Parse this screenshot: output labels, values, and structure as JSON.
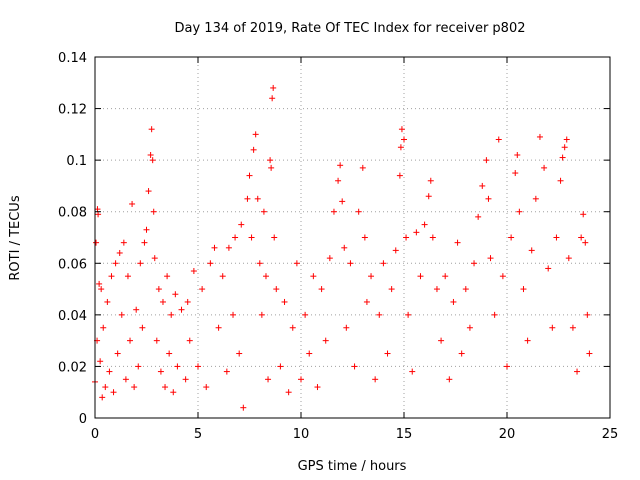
{
  "chart_data": {
    "type": "scatter",
    "title": "Day 134 of 2019, Rate Of TEC Index for receiver p802",
    "xlabel": "GPS time / hours",
    "ylabel": "ROTI / TECUs",
    "xlim": [
      0,
      25
    ],
    "ylim": [
      0,
      0.14
    ],
    "xticks": [
      0,
      5,
      10,
      15,
      20,
      25
    ],
    "yticks": [
      0,
      0.02,
      0.04,
      0.06,
      0.08,
      0.1,
      0.12,
      0.14
    ],
    "xtick_labels": [
      "0",
      "5",
      "10",
      "15",
      "20",
      "25"
    ],
    "ytick_labels": [
      "0",
      "0.02",
      "0.04",
      "0.06",
      "0.08",
      "0.1",
      "0.12",
      "0.14"
    ],
    "grid": true,
    "marker": "plus",
    "color": "#ff0000",
    "series": [
      {
        "points": [
          [
            0.0,
            0.014
          ],
          [
            0.05,
            0.068
          ],
          [
            0.1,
            0.03
          ],
          [
            0.12,
            0.081
          ],
          [
            0.15,
            0.079
          ],
          [
            0.2,
            0.052
          ],
          [
            0.25,
            0.022
          ],
          [
            0.3,
            0.05
          ],
          [
            0.35,
            0.008
          ],
          [
            0.4,
            0.035
          ],
          [
            0.5,
            0.012
          ],
          [
            0.6,
            0.045
          ],
          [
            0.7,
            0.018
          ],
          [
            0.8,
            0.055
          ],
          [
            0.9,
            0.01
          ],
          [
            1.0,
            0.06
          ],
          [
            1.1,
            0.025
          ],
          [
            1.2,
            0.064
          ],
          [
            1.3,
            0.04
          ],
          [
            1.4,
            0.068
          ],
          [
            1.5,
            0.015
          ],
          [
            1.6,
            0.055
          ],
          [
            1.7,
            0.03
          ],
          [
            1.8,
            0.083
          ],
          [
            1.9,
            0.012
          ],
          [
            2.0,
            0.042
          ],
          [
            2.1,
            0.02
          ],
          [
            2.2,
            0.06
          ],
          [
            2.3,
            0.035
          ],
          [
            2.4,
            0.068
          ],
          [
            2.5,
            0.073
          ],
          [
            2.6,
            0.088
          ],
          [
            2.7,
            0.102
          ],
          [
            2.75,
            0.112
          ],
          [
            2.8,
            0.1
          ],
          [
            2.85,
            0.08
          ],
          [
            2.9,
            0.062
          ],
          [
            3.0,
            0.03
          ],
          [
            3.1,
            0.05
          ],
          [
            3.2,
            0.018
          ],
          [
            3.3,
            0.045
          ],
          [
            3.4,
            0.012
          ],
          [
            3.5,
            0.055
          ],
          [
            3.6,
            0.025
          ],
          [
            3.7,
            0.04
          ],
          [
            3.8,
            0.01
          ],
          [
            3.9,
            0.048
          ],
          [
            4.0,
            0.02
          ],
          [
            4.2,
            0.042
          ],
          [
            4.4,
            0.015
          ],
          [
            4.5,
            0.045
          ],
          [
            4.6,
            0.03
          ],
          [
            4.8,
            0.057
          ],
          [
            5.0,
            0.02
          ],
          [
            5.2,
            0.05
          ],
          [
            5.4,
            0.012
          ],
          [
            5.6,
            0.06
          ],
          [
            5.8,
            0.066
          ],
          [
            6.0,
            0.035
          ],
          [
            6.2,
            0.055
          ],
          [
            6.4,
            0.018
          ],
          [
            6.5,
            0.066
          ],
          [
            6.7,
            0.04
          ],
          [
            6.8,
            0.07
          ],
          [
            7.0,
            0.025
          ],
          [
            7.1,
            0.075
          ],
          [
            7.2,
            0.004
          ],
          [
            7.4,
            0.085
          ],
          [
            7.5,
            0.094
          ],
          [
            7.6,
            0.07
          ],
          [
            7.7,
            0.104
          ],
          [
            7.8,
            0.11
          ],
          [
            7.9,
            0.085
          ],
          [
            8.0,
            0.06
          ],
          [
            8.1,
            0.04
          ],
          [
            8.2,
            0.08
          ],
          [
            8.3,
            0.055
          ],
          [
            8.4,
            0.015
          ],
          [
            8.5,
            0.1
          ],
          [
            8.55,
            0.097
          ],
          [
            8.6,
            0.124
          ],
          [
            8.65,
            0.128
          ],
          [
            8.7,
            0.07
          ],
          [
            8.8,
            0.05
          ],
          [
            9.0,
            0.02
          ],
          [
            9.2,
            0.045
          ],
          [
            9.4,
            0.01
          ],
          [
            9.6,
            0.035
          ],
          [
            9.8,
            0.06
          ],
          [
            10.0,
            0.015
          ],
          [
            10.2,
            0.04
          ],
          [
            10.4,
            0.025
          ],
          [
            10.6,
            0.055
          ],
          [
            10.8,
            0.012
          ],
          [
            11.0,
            0.05
          ],
          [
            11.2,
            0.03
          ],
          [
            11.4,
            0.062
          ],
          [
            11.6,
            0.08
          ],
          [
            11.8,
            0.092
          ],
          [
            11.9,
            0.098
          ],
          [
            12.0,
            0.084
          ],
          [
            12.1,
            0.066
          ],
          [
            12.2,
            0.035
          ],
          [
            12.4,
            0.06
          ],
          [
            12.6,
            0.02
          ],
          [
            12.8,
            0.08
          ],
          [
            13.0,
            0.097
          ],
          [
            13.1,
            0.07
          ],
          [
            13.2,
            0.045
          ],
          [
            13.4,
            0.055
          ],
          [
            13.6,
            0.015
          ],
          [
            13.8,
            0.04
          ],
          [
            14.0,
            0.06
          ],
          [
            14.2,
            0.025
          ],
          [
            14.4,
            0.05
          ],
          [
            14.6,
            0.065
          ],
          [
            14.8,
            0.094
          ],
          [
            14.85,
            0.105
          ],
          [
            14.9,
            0.112
          ],
          [
            15.0,
            0.108
          ],
          [
            15.1,
            0.07
          ],
          [
            15.2,
            0.04
          ],
          [
            15.4,
            0.018
          ],
          [
            15.6,
            0.072
          ],
          [
            15.8,
            0.055
          ],
          [
            16.0,
            0.075
          ],
          [
            16.2,
            0.086
          ],
          [
            16.3,
            0.092
          ],
          [
            16.4,
            0.07
          ],
          [
            16.6,
            0.05
          ],
          [
            16.8,
            0.03
          ],
          [
            17.0,
            0.055
          ],
          [
            17.2,
            0.015
          ],
          [
            17.4,
            0.045
          ],
          [
            17.6,
            0.068
          ],
          [
            17.8,
            0.025
          ],
          [
            18.0,
            0.05
          ],
          [
            18.2,
            0.035
          ],
          [
            18.4,
            0.06
          ],
          [
            18.6,
            0.078
          ],
          [
            18.8,
            0.09
          ],
          [
            19.0,
            0.1
          ],
          [
            19.1,
            0.085
          ],
          [
            19.2,
            0.062
          ],
          [
            19.4,
            0.04
          ],
          [
            19.6,
            0.108
          ],
          [
            19.8,
            0.055
          ],
          [
            20.0,
            0.02
          ],
          [
            20.2,
            0.07
          ],
          [
            20.4,
            0.095
          ],
          [
            20.5,
            0.102
          ],
          [
            20.6,
            0.08
          ],
          [
            20.8,
            0.05
          ],
          [
            21.0,
            0.03
          ],
          [
            21.2,
            0.065
          ],
          [
            21.4,
            0.085
          ],
          [
            21.6,
            0.109
          ],
          [
            21.8,
            0.097
          ],
          [
            22.0,
            0.058
          ],
          [
            22.2,
            0.035
          ],
          [
            22.4,
            0.07
          ],
          [
            22.6,
            0.092
          ],
          [
            22.7,
            0.101
          ],
          [
            22.8,
            0.105
          ],
          [
            22.9,
            0.108
          ],
          [
            23.0,
            0.062
          ],
          [
            23.2,
            0.035
          ],
          [
            23.4,
            0.018
          ],
          [
            23.6,
            0.07
          ],
          [
            23.7,
            0.079
          ],
          [
            23.8,
            0.068
          ],
          [
            23.9,
            0.04
          ],
          [
            24.0,
            0.025
          ]
        ]
      }
    ]
  }
}
